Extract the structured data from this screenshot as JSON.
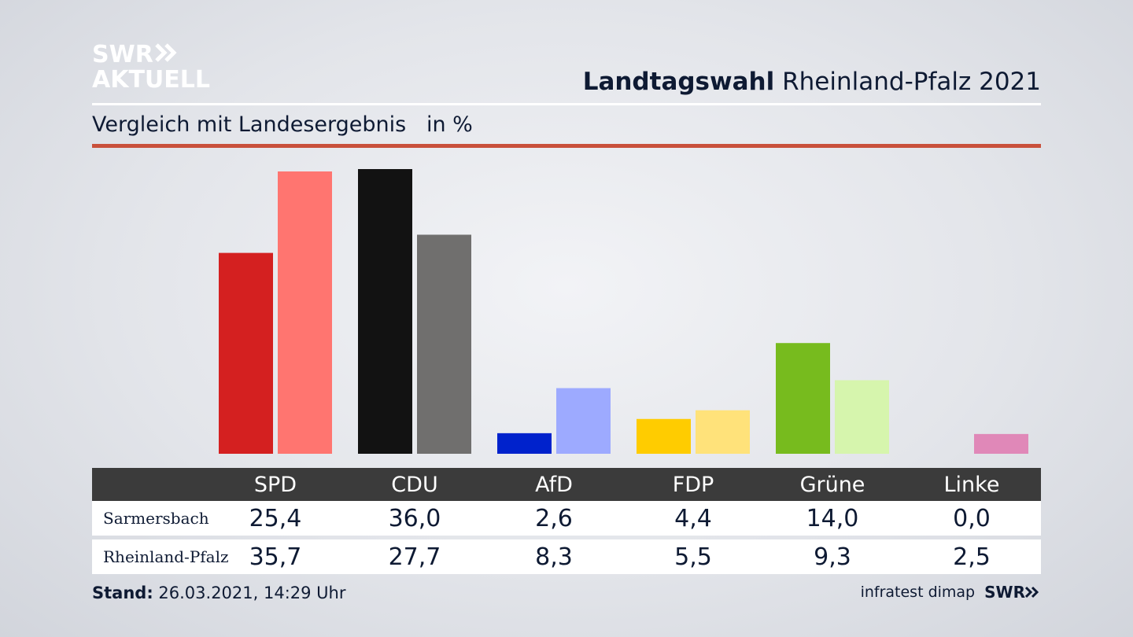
{
  "logo": {
    "line1": "SWR",
    "line2": "AKTUELL"
  },
  "header": {
    "title_bold": "Landtagswahl",
    "title_rest": " Rheinland-Pfalz 2021"
  },
  "subtitle": "Vergleich mit Landesergebnis   in %",
  "colors": {
    "accent_rule": "#c9503b",
    "table_header": "#3b3b3b"
  },
  "chart_data": {
    "type": "bar",
    "categories": [
      "SPD",
      "CDU",
      "AfD",
      "FDP",
      "Grüne",
      "Linke"
    ],
    "series": [
      {
        "name": "Sarmersbach",
        "values": [
          25.4,
          36.0,
          2.6,
          4.4,
          14.0,
          0.0
        ],
        "colors": [
          "#d42020",
          "#121212",
          "#0022cc",
          "#ffcc00",
          "#77bb1e",
          "#c9c9c9"
        ]
      },
      {
        "name": "Rheinland-Pfalz",
        "values": [
          35.7,
          27.7,
          8.3,
          5.5,
          9.3,
          2.5
        ],
        "colors": [
          "#ff7570",
          "#706f6e",
          "#9daaff",
          "#ffe27a",
          "#d6f5ad",
          "#e088b8"
        ]
      }
    ],
    "ylim": [
      0,
      36
    ]
  },
  "table": {
    "rows": [
      {
        "label": "Sarmersbach",
        "values": [
          "25,4",
          "36,0",
          "2,6",
          "4,4",
          "14,0",
          "0,0"
        ]
      },
      {
        "label": "Rheinland-Pfalz",
        "values": [
          "35,7",
          "27,7",
          "8,3",
          "5,5",
          "9,3",
          "2,5"
        ]
      }
    ]
  },
  "footer": {
    "stand_label": "Stand:",
    "stand_value": " 26.03.2021, 14:29 Uhr",
    "source": "infratest dimap",
    "brand": "SWR"
  }
}
